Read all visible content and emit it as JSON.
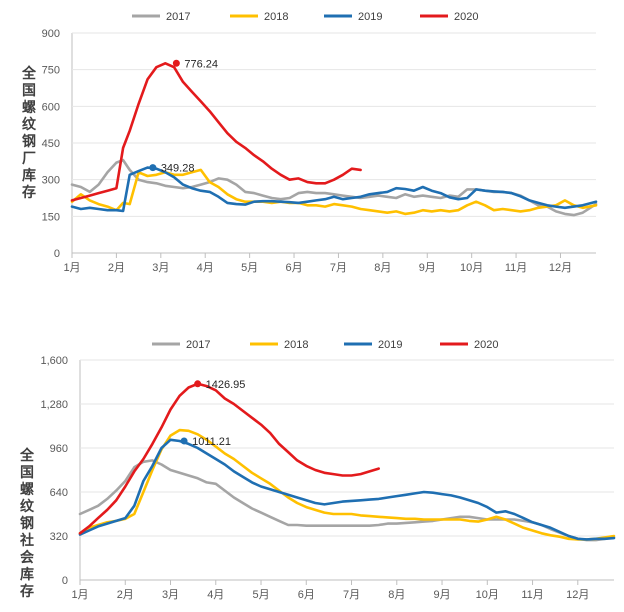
{
  "chart_data": [
    {
      "type": "line",
      "title": "",
      "ylabel": "全国螺纹钢厂库存",
      "xlabel": "",
      "ylim": [
        0,
        900
      ],
      "yticks": [
        0,
        150,
        300,
        450,
        600,
        750,
        900
      ],
      "ytick_labels": [
        "0",
        "150",
        "300",
        "450",
        "600",
        "750",
        "900"
      ],
      "xlim": [
        1,
        12.8
      ],
      "xticks": [
        1,
        2,
        3,
        4,
        5,
        6,
        7,
        8,
        9,
        10,
        11,
        12
      ],
      "xtick_labels": [
        "1月",
        "2月",
        "3月",
        "4月",
        "5月",
        "6月",
        "7月",
        "8月",
        "9月",
        "10月",
        "11月",
        "12月"
      ],
      "series": [
        {
          "name": "2017",
          "color": "#a5a5a5",
          "x": [
            1.0,
            1.2,
            1.4,
            1.6,
            1.8,
            2.0,
            2.15,
            2.3,
            2.5,
            2.7,
            2.9,
            3.1,
            3.3,
            3.5,
            3.7,
            3.9,
            4.1,
            4.3,
            4.5,
            4.7,
            4.9,
            5.1,
            5.3,
            5.5,
            5.7,
            5.9,
            6.1,
            6.3,
            6.5,
            6.7,
            6.9,
            7.1,
            7.3,
            7.5,
            7.7,
            7.9,
            8.1,
            8.3,
            8.5,
            8.7,
            8.9,
            9.1,
            9.3,
            9.5,
            9.7,
            9.9,
            10.1,
            10.3,
            10.5,
            10.7,
            10.9,
            11.1,
            11.3,
            11.5,
            11.7,
            11.9,
            12.1,
            12.3,
            12.5,
            12.8
          ],
          "y": [
            280,
            270,
            250,
            280,
            330,
            370,
            380,
            340,
            300,
            290,
            285,
            275,
            270,
            265,
            270,
            280,
            290,
            305,
            300,
            280,
            250,
            245,
            235,
            225,
            220,
            225,
            245,
            250,
            245,
            245,
            240,
            235,
            230,
            225,
            230,
            235,
            230,
            225,
            240,
            230,
            235,
            230,
            225,
            235,
            230,
            260,
            260,
            255,
            250,
            250,
            245,
            235,
            215,
            195,
            190,
            170,
            160,
            155,
            165,
            200
          ]
        },
        {
          "name": "2018",
          "color": "#ffc000",
          "x": [
            1.0,
            1.2,
            1.4,
            1.6,
            1.8,
            2.0,
            2.15,
            2.3,
            2.5,
            2.7,
            2.9,
            3.1,
            3.3,
            3.5,
            3.7,
            3.9,
            4.1,
            4.3,
            4.5,
            4.7,
            4.9,
            5.1,
            5.3,
            5.5,
            5.7,
            5.9,
            6.1,
            6.3,
            6.5,
            6.7,
            6.9,
            7.1,
            7.3,
            7.5,
            7.7,
            7.9,
            8.1,
            8.3,
            8.5,
            8.7,
            8.9,
            9.1,
            9.3,
            9.5,
            9.7,
            9.9,
            10.1,
            10.3,
            10.5,
            10.7,
            10.9,
            11.1,
            11.3,
            11.5,
            11.7,
            11.9,
            12.1,
            12.3,
            12.5,
            12.8
          ],
          "y": [
            210,
            240,
            215,
            200,
            190,
            175,
            205,
            200,
            330,
            315,
            320,
            330,
            320,
            320,
            330,
            340,
            290,
            270,
            240,
            220,
            210,
            210,
            210,
            205,
            210,
            205,
            205,
            195,
            195,
            190,
            200,
            195,
            190,
            180,
            175,
            170,
            165,
            170,
            160,
            165,
            175,
            170,
            175,
            170,
            175,
            195,
            210,
            195,
            175,
            180,
            175,
            170,
            175,
            185,
            190,
            195,
            215,
            195,
            185,
            195
          ]
        },
        {
          "name": "2019",
          "color": "#1f6fb2",
          "x": [
            1.0,
            1.2,
            1.4,
            1.6,
            1.8,
            2.0,
            2.15,
            2.3,
            2.5,
            2.7,
            2.9,
            3.1,
            3.3,
            3.5,
            3.7,
            3.9,
            4.1,
            4.3,
            4.5,
            4.7,
            4.9,
            5.1,
            5.3,
            5.5,
            5.7,
            5.9,
            6.1,
            6.3,
            6.5,
            6.7,
            6.9,
            7.1,
            7.3,
            7.5,
            7.7,
            7.9,
            8.1,
            8.3,
            8.5,
            8.7,
            8.9,
            9.1,
            9.3,
            9.5,
            9.7,
            9.9,
            10.1,
            10.3,
            10.5,
            10.7,
            10.9,
            11.1,
            11.3,
            11.5,
            11.7,
            11.9,
            12.1,
            12.3,
            12.5,
            12.8
          ],
          "y": [
            190,
            180,
            185,
            180,
            175,
            175,
            172,
            320,
            335,
            349.28,
            345,
            330,
            310,
            280,
            265,
            255,
            250,
            230,
            205,
            200,
            198,
            210,
            212,
            212,
            210,
            208,
            205,
            210,
            215,
            220,
            230,
            220,
            225,
            230,
            240,
            245,
            250,
            265,
            262,
            255,
            270,
            255,
            245,
            228,
            220,
            225,
            260,
            255,
            252,
            250,
            245,
            232,
            215,
            205,
            195,
            190,
            185,
            190,
            195,
            210
          ]
        },
        {
          "name": "2020",
          "color": "#e31a1c",
          "x": [
            1.0,
            1.2,
            1.4,
            1.6,
            1.8,
            2.0,
            2.15,
            2.3,
            2.5,
            2.7,
            2.9,
            3.1,
            3.3,
            3.5,
            3.7,
            3.9,
            4.1,
            4.3,
            4.5,
            4.7,
            4.9,
            5.1,
            5.3,
            5.5,
            5.7,
            5.9,
            6.1,
            6.3,
            6.5,
            6.7,
            6.9,
            7.1,
            7.3,
            7.5
          ],
          "y": [
            215,
            225,
            235,
            245,
            255,
            265,
            430,
            500,
            610,
            710,
            760,
            776.24,
            760,
            700,
            660,
            620,
            580,
            535,
            490,
            455,
            430,
            400,
            375,
            345,
            320,
            300,
            305,
            290,
            285,
            285,
            300,
            320,
            345,
            340
          ]
        }
      ],
      "legend": [
        "2017",
        "2018",
        "2019",
        "2020"
      ],
      "legend_position": "top",
      "annotations": [
        {
          "text": "776.24",
          "series": "2020",
          "x": 3.35,
          "y": 776.24
        },
        {
          "text": "349.28",
          "series": "2019",
          "x": 2.82,
          "y": 349.28
        }
      ]
    },
    {
      "type": "line",
      "title": "",
      "ylabel": "全国螺纹钢社会库存",
      "xlabel": "",
      "ylim": [
        0,
        1600
      ],
      "yticks": [
        0,
        320,
        640,
        960,
        1280,
        1600
      ],
      "ytick_labels": [
        "0",
        "320",
        "640",
        "960",
        "1,280",
        "1,600"
      ],
      "xlim": [
        1,
        12.8
      ],
      "xticks": [
        1,
        2,
        3,
        4,
        5,
        6,
        7,
        8,
        9,
        10,
        11,
        12
      ],
      "xtick_labels": [
        "1月",
        "2月",
        "3月",
        "4月",
        "5月",
        "6月",
        "7月",
        "8月",
        "9月",
        "10月",
        "11月",
        "12月"
      ],
      "series": [
        {
          "name": "2017",
          "color": "#a5a5a5",
          "x": [
            1.0,
            1.2,
            1.4,
            1.6,
            1.8,
            2.0,
            2.2,
            2.4,
            2.6,
            2.8,
            3.0,
            3.2,
            3.4,
            3.6,
            3.8,
            4.0,
            4.2,
            4.4,
            4.6,
            4.8,
            5.0,
            5.2,
            5.4,
            5.6,
            5.8,
            6.0,
            6.2,
            6.4,
            6.6,
            6.8,
            7.0,
            7.2,
            7.4,
            7.6,
            7.8,
            8.0,
            8.2,
            8.4,
            8.6,
            8.8,
            9.0,
            9.2,
            9.4,
            9.6,
            9.8,
            10.0,
            10.2,
            10.4,
            10.6,
            10.8,
            11.0,
            11.2,
            11.4,
            11.6,
            11.8,
            12.0,
            12.2,
            12.4,
            12.6,
            12.8
          ],
          "y": [
            480,
            510,
            540,
            590,
            650,
            720,
            820,
            860,
            870,
            840,
            800,
            780,
            760,
            740,
            710,
            700,
            650,
            600,
            560,
            520,
            490,
            460,
            430,
            400,
            400,
            395,
            395,
            395,
            395,
            395,
            395,
            395,
            395,
            400,
            410,
            410,
            415,
            420,
            425,
            430,
            440,
            450,
            460,
            460,
            450,
            440,
            440,
            440,
            440,
            430,
            420,
            400,
            370,
            345,
            320,
            300,
            290,
            290,
            300,
            310
          ]
        },
        {
          "name": "2018",
          "color": "#ffc000",
          "x": [
            1.0,
            1.2,
            1.4,
            1.6,
            1.8,
            2.0,
            2.2,
            2.4,
            2.6,
            2.8,
            3.0,
            3.2,
            3.4,
            3.6,
            3.8,
            4.0,
            4.2,
            4.4,
            4.6,
            4.8,
            5.0,
            5.2,
            5.4,
            5.6,
            5.8,
            6.0,
            6.2,
            6.4,
            6.6,
            6.8,
            7.0,
            7.2,
            7.4,
            7.6,
            7.8,
            8.0,
            8.2,
            8.4,
            8.6,
            8.8,
            9.0,
            9.2,
            9.4,
            9.6,
            9.8,
            10.0,
            10.2,
            10.4,
            10.6,
            10.8,
            11.0,
            11.2,
            11.4,
            11.6,
            11.8,
            12.0,
            12.2,
            12.4,
            12.6,
            12.8
          ],
          "y": [
            340,
            380,
            400,
            420,
            430,
            445,
            480,
            640,
            800,
            950,
            1050,
            1090,
            1085,
            1060,
            1020,
            970,
            920,
            880,
            830,
            780,
            740,
            700,
            650,
            600,
            560,
            530,
            510,
            490,
            480,
            480,
            480,
            470,
            465,
            460,
            455,
            450,
            445,
            445,
            440,
            440,
            440,
            440,
            440,
            430,
            425,
            440,
            460,
            440,
            410,
            380,
            360,
            340,
            325,
            315,
            300,
            295,
            295,
            300,
            310,
            320
          ]
        },
        {
          "name": "2019",
          "color": "#1f6fb2",
          "x": [
            1.0,
            1.2,
            1.4,
            1.6,
            1.8,
            2.0,
            2.2,
            2.4,
            2.6,
            2.8,
            3.0,
            3.2,
            3.4,
            3.6,
            3.8,
            4.0,
            4.2,
            4.4,
            4.6,
            4.8,
            5.0,
            5.2,
            5.4,
            5.6,
            5.8,
            6.0,
            6.2,
            6.4,
            6.6,
            6.8,
            7.0,
            7.2,
            7.4,
            7.6,
            7.8,
            8.0,
            8.2,
            8.4,
            8.6,
            8.8,
            9.0,
            9.2,
            9.4,
            9.6,
            9.8,
            10.0,
            10.2,
            10.4,
            10.6,
            10.8,
            11.0,
            11.2,
            11.4,
            11.6,
            11.8,
            12.0,
            12.2,
            12.4,
            12.6,
            12.8
          ],
          "y": [
            330,
            360,
            390,
            410,
            430,
            450,
            540,
            720,
            830,
            960,
            1020,
            1011.21,
            990,
            960,
            920,
            880,
            840,
            790,
            750,
            710,
            680,
            660,
            640,
            620,
            600,
            580,
            560,
            550,
            560,
            570,
            575,
            580,
            585,
            590,
            600,
            610,
            620,
            630,
            640,
            635,
            625,
            615,
            600,
            580,
            560,
            530,
            490,
            500,
            480,
            450,
            420,
            400,
            380,
            350,
            320,
            300,
            295,
            300,
            300,
            305
          ]
        },
        {
          "name": "2020",
          "color": "#e31a1c",
          "x": [
            1.0,
            1.2,
            1.4,
            1.6,
            1.8,
            2.0,
            2.2,
            2.4,
            2.6,
            2.8,
            3.0,
            3.2,
            3.4,
            3.6,
            3.8,
            4.0,
            4.2,
            4.4,
            4.6,
            4.8,
            5.0,
            5.2,
            5.4,
            5.6,
            5.8,
            6.0,
            6.2,
            6.4,
            6.6,
            6.8,
            7.0,
            7.2,
            7.4,
            7.6
          ],
          "y": [
            340,
            390,
            450,
            510,
            580,
            680,
            790,
            880,
            990,
            1110,
            1240,
            1340,
            1400,
            1426.95,
            1410,
            1380,
            1320,
            1280,
            1230,
            1180,
            1130,
            1070,
            990,
            930,
            870,
            830,
            800,
            780,
            770,
            760,
            760,
            770,
            790,
            810
          ]
        }
      ],
      "legend": [
        "2017",
        "2018",
        "2019",
        "2020"
      ],
      "legend_position": "top",
      "annotations": [
        {
          "text": "1426.95",
          "series": "2020",
          "x": 3.6,
          "y": 1426.95
        },
        {
          "text": "1011.21",
          "series": "2019",
          "x": 3.3,
          "y": 1011.21
        }
      ]
    }
  ]
}
